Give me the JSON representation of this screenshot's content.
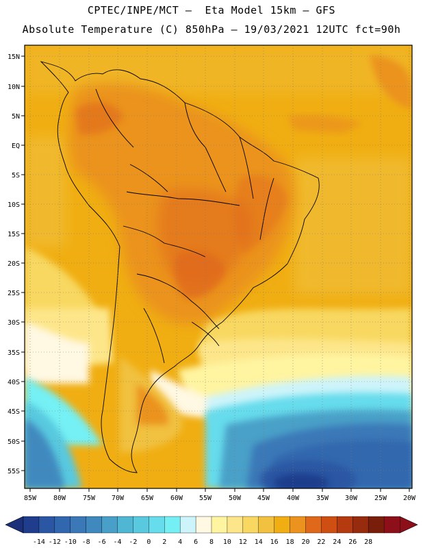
{
  "header": {
    "line1": "CPTEC/INPE/MCT –  Eta Model 15km – GFS",
    "line2": "Absolute Temperature (C) 850hPa – 19/03/2021 12UTC fct=90h"
  },
  "map": {
    "lat_labels": [
      "15N",
      "10N",
      "5N",
      "EQ",
      "5S",
      "10S",
      "15S",
      "20S",
      "25S",
      "30S",
      "35S",
      "40S",
      "45S",
      "50S",
      "55S"
    ],
    "lon_labels": [
      "85W",
      "80W",
      "75W",
      "70W",
      "65W",
      "60W",
      "55W",
      "50W",
      "45W",
      "40W",
      "35W",
      "30W",
      "25W",
      "20W"
    ]
  },
  "colorbar": {
    "ticks": [
      "-14",
      "-12",
      "-10",
      "-8",
      "-6",
      "-4",
      "-2",
      "0",
      "2",
      "4",
      "6",
      "8",
      "10",
      "12",
      "14",
      "16",
      "18",
      "20",
      "22",
      "24",
      "26",
      "28"
    ],
    "colors": [
      "#1f3d8c",
      "#2a56a3",
      "#3167ae",
      "#3a78b8",
      "#4089bf",
      "#48a0c8",
      "#4fb6d4",
      "#58c9df",
      "#66dcec",
      "#74f0f4",
      "#cdf4fa",
      "#fff8e2",
      "#fff4a0",
      "#fde68a",
      "#f8d860",
      "#f1c13f",
      "#f0ae12",
      "#eb931e",
      "#e0681a",
      "#cf4f12",
      "#b53a10",
      "#962b0d",
      "#7a1e0c",
      "#8c0f1a"
    ],
    "low_arrow_color": "#1c2f7a",
    "high_arrow_color": "#8c0f1a"
  }
}
